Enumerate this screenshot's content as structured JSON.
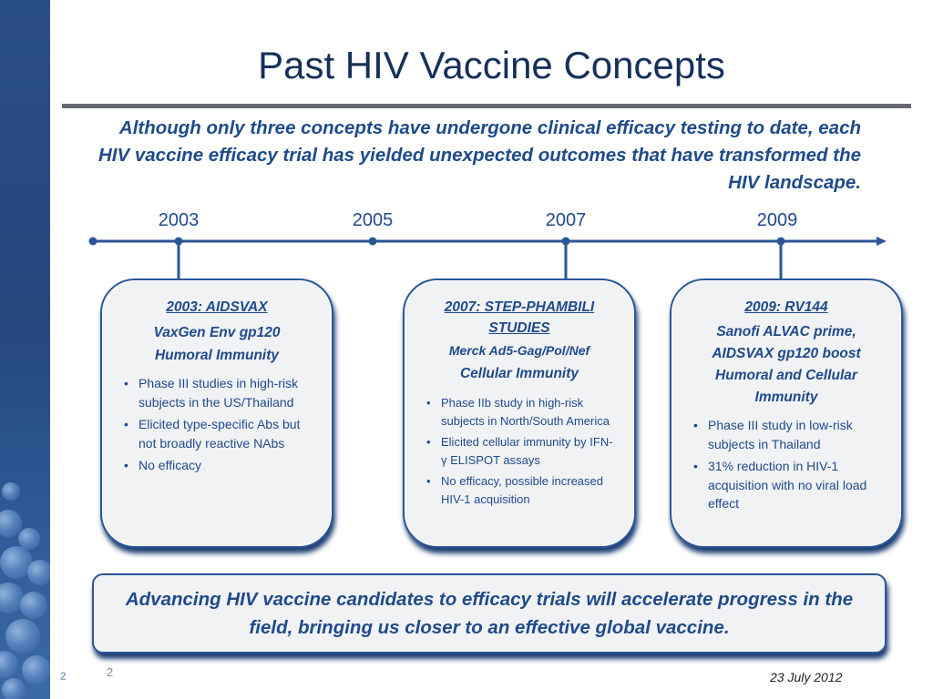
{
  "title": "Past HIV Vaccine Concepts",
  "intro": "Although only three concepts have undergone clinical efficacy testing to date, each HIV vaccine efficacy trial has yielded unexpected outcomes that have transformed the HIV landscape.",
  "timeline": {
    "years": [
      "2003",
      "2005",
      "2007",
      "2009"
    ]
  },
  "cards": [
    {
      "heading": "2003: AIDSVAX",
      "lines": [
        "VaxGen Env gp120",
        "Humoral Immunity"
      ],
      "bullets": [
        "Phase III studies in high-risk subjects in the US/Thailand",
        "Elicited type-specific Abs but not broadly reactive NAbs",
        "No efficacy"
      ]
    },
    {
      "heading": "2007: STEP-PHAMBILI STUDIES",
      "lines": [
        "Merck Ad5-Gag/Pol/Nef",
        "Cellular Immunity"
      ],
      "bullets": [
        "Phase IIb study in high-risk subjects in North/South America",
        "Elicited cellular immunity by IFN-γ ELISPOT assays",
        "No efficacy, possible increased HIV-1 acquisition"
      ]
    },
    {
      "heading": "2009: RV144",
      "lines": [
        "Sanofi ALVAC prime, AIDSVAX gp120 boost",
        "Humoral and Cellular Immunity"
      ],
      "bullets": [
        "Phase III study in low-risk subjects in Thailand",
        "31% reduction in HIV-1 acquisition with no viral load effect"
      ]
    }
  ],
  "conclusion": "Advancing HIV vaccine  candidates to efficacy trials will accelerate progress in the field, bringing us closer to an effective global vaccine.",
  "footer": {
    "slide_number_marker": "2",
    "slide_number": "2",
    "date": "23 July 2012"
  },
  "colors": {
    "accent": "#1f4a8a",
    "timeline": "#2a5696",
    "title": "#17305a"
  }
}
